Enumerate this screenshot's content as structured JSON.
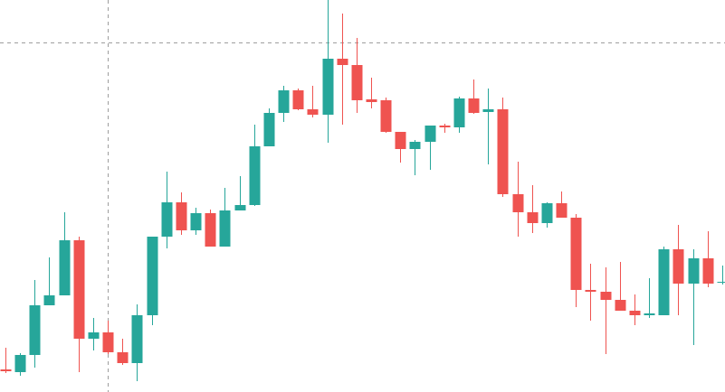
{
  "chart_data": {
    "type": "candlestick",
    "ylim": [
      0,
      434
    ],
    "up_color": "#26a69a",
    "down_color": "#ef5350",
    "open": [
      25,
      22,
      41,
      96,
      107,
      168,
      59,
      66,
      44,
      32,
      85,
      172,
      210,
      179,
      198,
      161,
      201,
      207,
      272,
      309,
      334,
      313,
      307,
      369,
      362,
      324,
      323,
      288,
      269,
      277,
      295,
      293,
      325,
      310,
      313,
      219,
      199,
      187,
      209,
      193,
      113,
      111,
      102,
      90,
      85,
      85,
      158,
      120,
      148,
      121
    ],
    "high": [
      49,
      43,
      124,
      149,
      199,
      172,
      82,
      79,
      59,
      97,
      172,
      244,
      221,
      204,
      202,
      226,
      239,
      296,
      314,
      339,
      336,
      339,
      434,
      419,
      392,
      348,
      326,
      288,
      279,
      295,
      297,
      327,
      346,
      336,
      326,
      255,
      229,
      210,
      222,
      197,
      142,
      138,
      144,
      108,
      126,
      161,
      185,
      158,
      178,
      140
    ],
    "low": [
      21,
      18,
      27,
      96,
      107,
      22,
      46,
      42,
      30,
      12,
      74,
      159,
      174,
      174,
      161,
      161,
      201,
      206,
      272,
      299,
      312,
      304,
      276,
      296,
      309,
      314,
      287,
      254,
      240,
      246,
      287,
      287,
      308,
      252,
      216,
      172,
      176,
      182,
      193,
      94,
      79,
      42,
      90,
      74,
      82,
      85,
      85,
      52,
      116,
      119
    ],
    "close": [
      23,
      41,
      96,
      107,
      168,
      59,
      66,
      44,
      32,
      85,
      172,
      210,
      179,
      198,
      161,
      201,
      207,
      272,
      309,
      334,
      313,
      307,
      369,
      362,
      323,
      321,
      288,
      269,
      277,
      295,
      293,
      325,
      309,
      313,
      219,
      199,
      187,
      209,
      193,
      113,
      111,
      102,
      90,
      85,
      87,
      158,
      120,
      148,
      120,
      122
    ]
  }
}
